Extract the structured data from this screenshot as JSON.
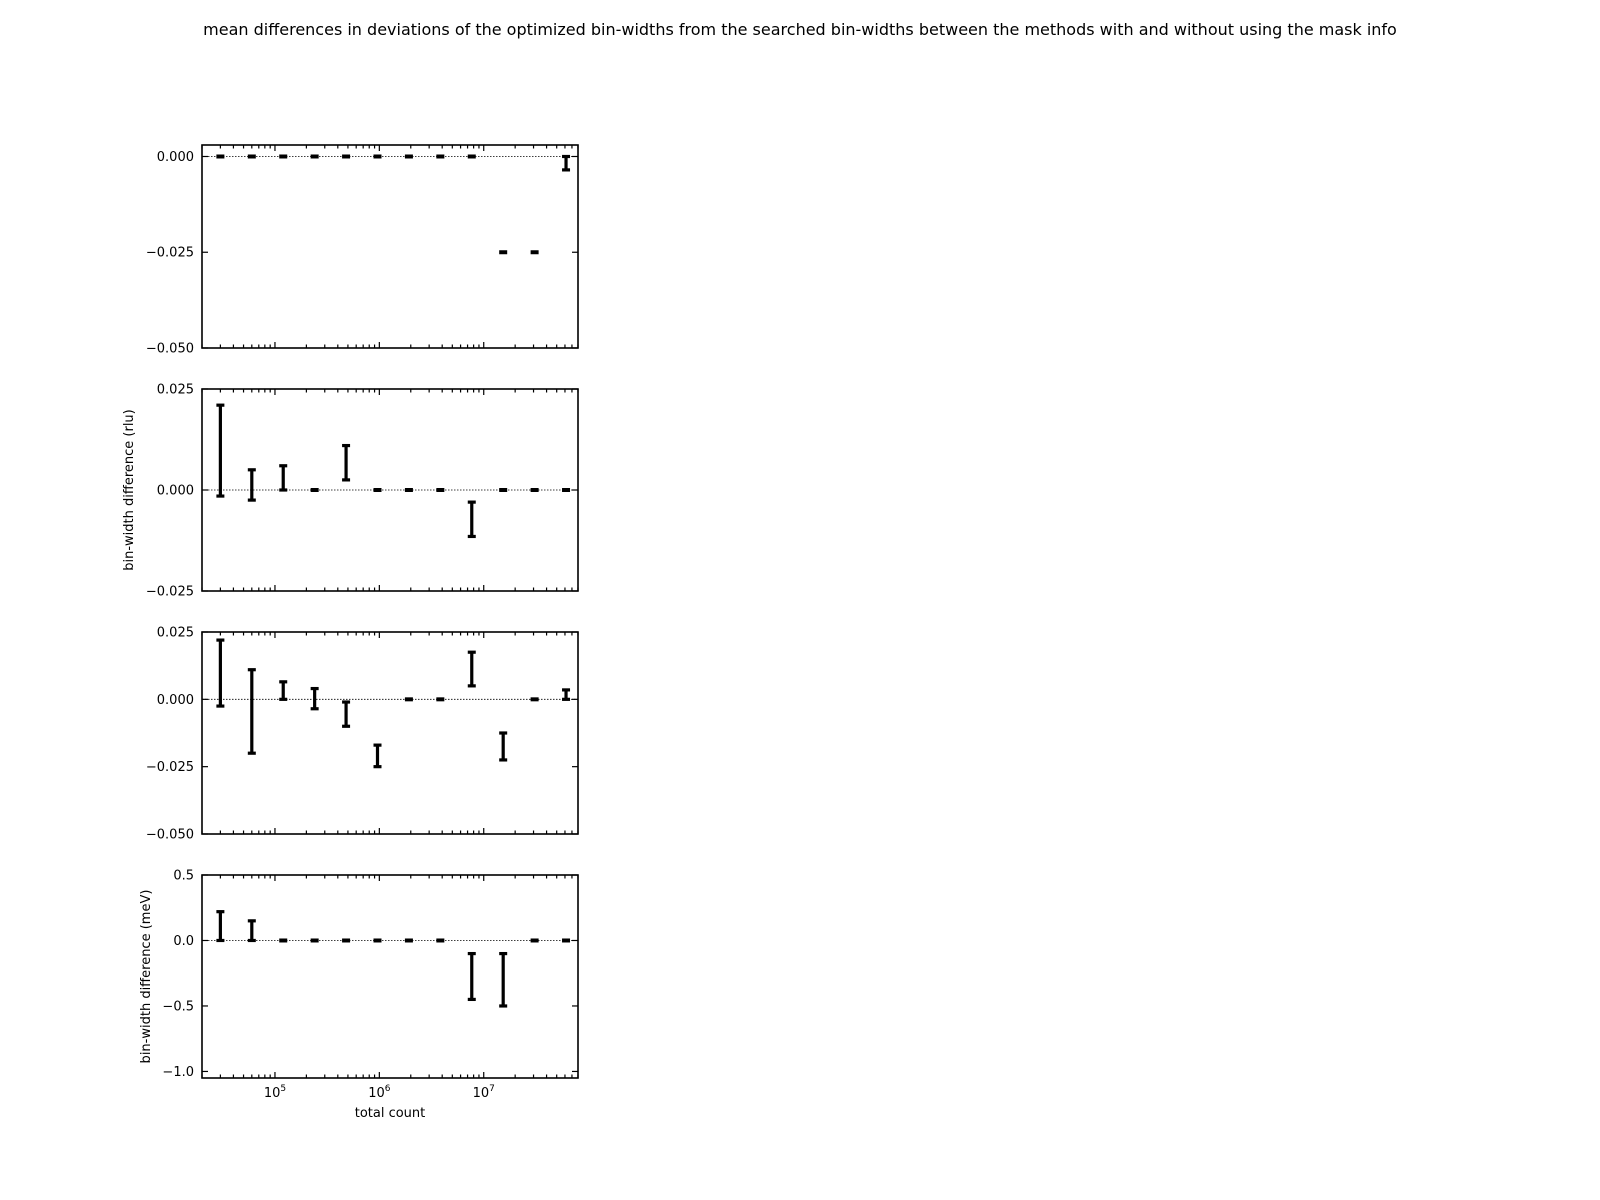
{
  "figure": {
    "title": "mean differences in deviations of the optimized bin-widths from the searched bin-widths between the methods with and without using the mask info"
  },
  "chart_data": [
    {
      "type": "errorbar",
      "panel": 1,
      "ylabel": "",
      "xlabel": "",
      "xscale": "log",
      "xlim": [
        20000,
        80000000
      ],
      "ylim": [
        -0.05,
        0.003
      ],
      "yticks": [
        0.0,
        -0.025,
        -0.05
      ],
      "ytick_labels": [
        "0.000",
        "−0.025",
        "−0.050"
      ],
      "x_tick_labels": [],
      "zero_line": true,
      "x": [
        30000,
        60000,
        120000,
        240000,
        480000,
        960000,
        1920000,
        3840000,
        7680000,
        15360000,
        30720000,
        61440000
      ],
      "lower": [
        0.0,
        0.0,
        0.0,
        0.0,
        0.0,
        0.0,
        0.0,
        0.0,
        0.0,
        -0.025,
        -0.025,
        -0.0035
      ],
      "upper": [
        0.0,
        0.0,
        0.0,
        0.0,
        0.0,
        0.0,
        0.0,
        0.0,
        0.0,
        -0.025,
        -0.025,
        0.0
      ]
    },
    {
      "type": "errorbar",
      "panel": 2,
      "ylabel": "bin-width difference (rlu)",
      "xlabel": "",
      "xscale": "log",
      "xlim": [
        20000,
        80000000
      ],
      "ylim": [
        -0.025,
        0.025
      ],
      "yticks": [
        0.025,
        0.0,
        -0.025
      ],
      "ytick_labels": [
        "0.025",
        "0.000",
        "−0.025"
      ],
      "x_tick_labels": [],
      "zero_line": true,
      "x": [
        30000,
        60000,
        120000,
        240000,
        480000,
        960000,
        1920000,
        3840000,
        7680000,
        15360000,
        30720000,
        61440000
      ],
      "lower": [
        -0.0015,
        -0.0025,
        0.0,
        0.0,
        0.0025,
        0.0,
        0.0,
        0.0,
        -0.0115,
        0.0,
        0.0,
        0.0
      ],
      "upper": [
        0.021,
        0.005,
        0.006,
        0.0,
        0.011,
        0.0,
        0.0,
        0.0,
        -0.003,
        0.0,
        0.0,
        0.0
      ]
    },
    {
      "type": "errorbar",
      "panel": 3,
      "ylabel": "",
      "xlabel": "",
      "xscale": "log",
      "xlim": [
        20000,
        80000000
      ],
      "ylim": [
        -0.05,
        0.025
      ],
      "yticks": [
        0.025,
        0.0,
        -0.025,
        -0.05
      ],
      "ytick_labels": [
        "0.025",
        "0.000",
        "−0.025",
        "−0.050"
      ],
      "x_tick_labels": [],
      "zero_line": true,
      "x": [
        30000,
        60000,
        120000,
        240000,
        480000,
        960000,
        1920000,
        3840000,
        7680000,
        15360000,
        30720000,
        61440000
      ],
      "lower": [
        -0.0025,
        -0.02,
        0.0,
        -0.0035,
        -0.01,
        -0.025,
        0.0,
        0.0,
        0.005,
        -0.0225,
        0.0,
        0.0
      ],
      "upper": [
        0.022,
        0.011,
        0.0065,
        0.004,
        -0.001,
        -0.017,
        0.0,
        0.0,
        0.0175,
        -0.0125,
        0.0,
        0.0035
      ]
    },
    {
      "type": "errorbar",
      "panel": 4,
      "ylabel": "bin-width difference (meV)",
      "xlabel": "total count",
      "xscale": "log",
      "xlim": [
        20000,
        80000000
      ],
      "ylim": [
        -1.05,
        0.5
      ],
      "yticks": [
        0.5,
        0.0,
        -0.5,
        -1.0
      ],
      "ytick_labels": [
        "0.5",
        "0.0",
        "−0.5",
        "−1.0"
      ],
      "x_tick_labels": [
        {
          "value": 100000,
          "base": "10",
          "exp": "5"
        },
        {
          "value": 1000000,
          "base": "10",
          "exp": "6"
        },
        {
          "value": 10000000,
          "base": "10",
          "exp": "7"
        }
      ],
      "zero_line": true,
      "x": [
        30000,
        60000,
        120000,
        240000,
        480000,
        960000,
        1920000,
        3840000,
        7680000,
        15360000,
        30720000,
        61440000
      ],
      "lower": [
        0.0,
        0.0,
        0.0,
        0.0,
        0.0,
        0.0,
        0.0,
        0.0,
        -0.45,
        -0.5,
        0.0,
        0.0
      ],
      "upper": [
        0.22,
        0.15,
        0.0,
        0.0,
        0.0,
        0.0,
        0.0,
        0.0,
        -0.1,
        -0.1,
        0.0,
        0.0
      ]
    }
  ]
}
